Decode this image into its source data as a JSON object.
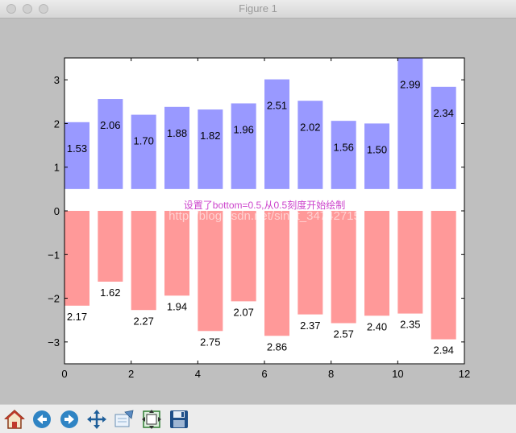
{
  "window": {
    "title": "Figure 1"
  },
  "toolbar": {
    "buttons": [
      {
        "name": "home-icon"
      },
      {
        "name": "back-icon"
      },
      {
        "name": "forward-icon"
      },
      {
        "name": "pan-icon"
      },
      {
        "name": "zoom-icon"
      },
      {
        "name": "subplots-icon"
      },
      {
        "name": "save-icon"
      }
    ]
  },
  "chart_data": {
    "type": "bar",
    "title": "",
    "xlabel": "",
    "ylabel": "",
    "xlim": [
      0,
      12
    ],
    "ylim": [
      -3.5,
      3.5
    ],
    "xticks": [
      "0",
      "2",
      "4",
      "6",
      "8",
      "10",
      "12"
    ],
    "yticks": [
      "−3",
      "−2",
      "−1",
      "0",
      "1",
      "2",
      "3"
    ],
    "annotation": "设置了bottom=0.5,从0.5刻度开始绘制",
    "annotation_color": "#cc44cc",
    "watermark": "http://blog.csdn.net/sinat_34742715",
    "grid": false,
    "x": [
      0,
      1,
      2,
      3,
      4,
      5,
      6,
      7,
      8,
      9,
      10,
      11
    ],
    "series": [
      {
        "color": "#9999ff",
        "bottom": 0.5,
        "values": [
          1.53,
          2.06,
          1.7,
          1.88,
          1.82,
          1.96,
          2.51,
          2.02,
          1.56,
          1.5,
          2.99,
          2.34
        ],
        "labels": [
          "1.53",
          "2.06",
          "1.70",
          "1.88",
          "1.82",
          "1.96",
          "2.51",
          "2.02",
          "1.56",
          "1.50",
          "2.99",
          "2.34"
        ]
      },
      {
        "color": "#ff9999",
        "bottom": 0,
        "values": [
          -2.17,
          -1.62,
          -2.27,
          -1.94,
          -2.75,
          -2.07,
          -2.86,
          -2.37,
          -2.57,
          -2.4,
          -2.35,
          -2.94
        ],
        "labels": [
          "2.17",
          "1.62",
          "2.27",
          "1.94",
          "2.75",
          "2.07",
          "2.86",
          "2.37",
          "2.57",
          "2.40",
          "2.35",
          "2.94"
        ]
      }
    ]
  }
}
